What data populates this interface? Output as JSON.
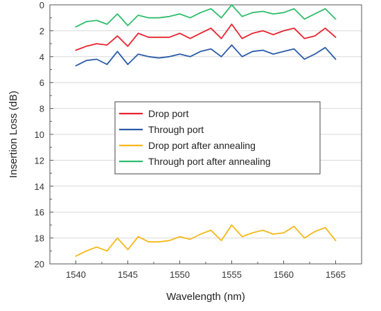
{
  "chart_data": {
    "type": "line",
    "title": "",
    "xlabel": "Wavelength (nm)",
    "ylabel": "Insertion Loss (dB)",
    "xlim": [
      1537.5,
      1567.5
    ],
    "ylim": [
      0,
      20
    ],
    "y_inverted": true,
    "grid": "horizontal",
    "legend_position": "center",
    "x_ticks": [
      1540,
      1545,
      1550,
      1555,
      1560,
      1565
    ],
    "x_tick_labels": [
      "1540",
      "1545",
      "1550",
      "1555",
      "1560",
      "1565"
    ],
    "y_ticks": [
      0,
      2,
      4,
      6,
      8,
      10,
      12,
      14,
      16,
      18,
      20
    ],
    "y_tick_labels": [
      "0",
      "2",
      "4",
      "6",
      "8",
      "10",
      "12",
      "14",
      "16",
      "18",
      "20"
    ],
    "series": [
      {
        "name": "Drop port",
        "color": "#e8222e",
        "x": [
          1540,
          1541,
          1542,
          1543,
          1544,
          1545,
          1546,
          1547,
          1548,
          1549,
          1550,
          1551,
          1552,
          1553,
          1554,
          1555,
          1556,
          1557,
          1558,
          1559,
          1560,
          1561,
          1562,
          1563,
          1564,
          1565
        ],
        "values": [
          3.5,
          3.2,
          3.0,
          3.1,
          2.4,
          3.2,
          2.2,
          2.5,
          2.5,
          2.5,
          2.2,
          2.6,
          2.2,
          1.8,
          2.6,
          1.5,
          2.6,
          2.2,
          2.0,
          2.3,
          2.0,
          1.8,
          2.6,
          2.4,
          1.8,
          2.5
        ]
      },
      {
        "name": "Through port",
        "color": "#2a5aa8",
        "x": [
          1540,
          1541,
          1542,
          1543,
          1544,
          1545,
          1546,
          1547,
          1548,
          1549,
          1550,
          1551,
          1552,
          1553,
          1554,
          1555,
          1556,
          1557,
          1558,
          1559,
          1560,
          1561,
          1562,
          1563,
          1564,
          1565
        ],
        "values": [
          4.7,
          4.3,
          4.2,
          4.6,
          3.6,
          4.6,
          3.8,
          4.0,
          4.1,
          4.0,
          3.8,
          4.0,
          3.6,
          3.4,
          4.0,
          3.1,
          4.0,
          3.6,
          3.5,
          3.8,
          3.6,
          3.4,
          4.2,
          3.8,
          3.3,
          4.2
        ]
      },
      {
        "name": "Drop port after annealing",
        "color": "#f5b819",
        "x": [
          1540,
          1541,
          1542,
          1543,
          1544,
          1545,
          1546,
          1547,
          1548,
          1549,
          1550,
          1551,
          1552,
          1553,
          1554,
          1555,
          1556,
          1557,
          1558,
          1559,
          1560,
          1561,
          1562,
          1563,
          1564,
          1565
        ],
        "values": [
          19.4,
          19.0,
          18.7,
          19.0,
          18.0,
          18.9,
          17.9,
          18.3,
          18.3,
          18.2,
          17.9,
          18.1,
          17.7,
          17.4,
          18.2,
          17.0,
          17.9,
          17.6,
          17.4,
          17.7,
          17.6,
          17.1,
          18.0,
          17.5,
          17.2,
          18.2
        ]
      },
      {
        "name": "Through port after annealing",
        "color": "#2ebd6b",
        "x": [
          1540,
          1541,
          1542,
          1543,
          1544,
          1545,
          1546,
          1547,
          1548,
          1549,
          1550,
          1551,
          1552,
          1553,
          1554,
          1555,
          1556,
          1557,
          1558,
          1559,
          1560,
          1561,
          1562,
          1563,
          1564,
          1565
        ],
        "values": [
          1.7,
          1.3,
          1.2,
          1.5,
          0.7,
          1.6,
          0.8,
          1.0,
          1.0,
          0.9,
          0.7,
          1.0,
          0.6,
          0.3,
          1.0,
          0.0,
          0.9,
          0.6,
          0.5,
          0.7,
          0.6,
          0.3,
          1.1,
          0.7,
          0.3,
          1.1
        ]
      }
    ]
  }
}
